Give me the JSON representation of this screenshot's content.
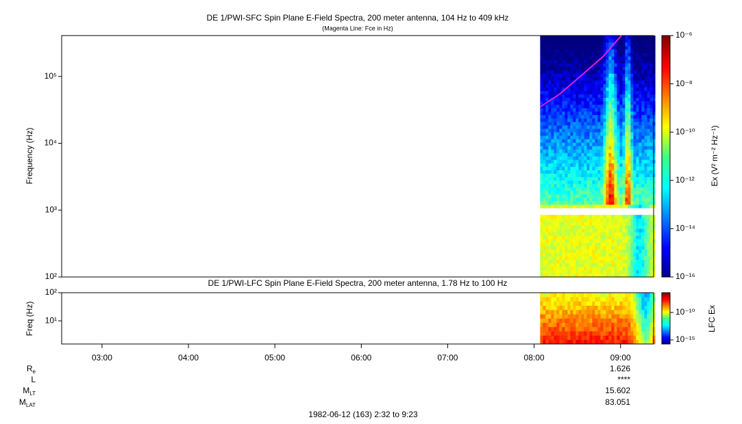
{
  "chart_data": [
    {
      "type": "spectrogram",
      "title": "DE 1/PWI-SFC  Spin Plane E-Field Spectra, 200 meter antenna, 104 Hz to 409 kHz",
      "subtitle": "(Magenta Line: Fce in Hz)",
      "ylabel": "Frequency (Hz)",
      "log_y": true,
      "xlim": [
        2.533,
        9.383
      ],
      "ylim": [
        100,
        409000
      ],
      "yticks": [
        {
          "value": 100,
          "label": "10²"
        },
        {
          "value": 1000,
          "label": "10³"
        },
        {
          "value": 10000,
          "label": "10⁴"
        },
        {
          "value": 100000,
          "label": "10⁵"
        }
      ],
      "series": [
        {
          "color": "#e020e0",
          "x": [
            8.07,
            8.3,
            8.57,
            8.8,
            9.01
          ],
          "values": [
            35000,
            55000,
            110000,
            200000,
            409000
          ]
        }
      ],
      "colorbar_label": "Ex (V² m⁻² Hz⁻¹)",
      "zlim": [
        1e-16,
        1e-06
      ],
      "zticks": [
        {
          "value": 1e-06,
          "label": "10⁻⁶"
        },
        {
          "value": 1e-08,
          "label": "10⁻⁸"
        },
        {
          "value": 1e-10,
          "label": "10⁻¹⁰"
        },
        {
          "value": 1e-12,
          "label": "10⁻¹²"
        },
        {
          "value": 1e-14,
          "label": "10⁻¹⁴"
        },
        {
          "value": 1e-16,
          "label": "10⁻¹⁶"
        }
      ]
    },
    {
      "type": "spectrogram",
      "title": "DE 1/PWI-LFC  Spin Plane E-Field Spectra, 200 meter antenna, 1.78 Hz to 100 Hz",
      "ylabel": "Freq (Hz)",
      "log_y": true,
      "xlim": [
        2.533,
        9.383
      ],
      "ylim": [
        1.5,
        100
      ],
      "yticks": [
        {
          "value": 10,
          "label": "10¹"
        },
        {
          "value": 100,
          "label": "10²"
        }
      ],
      "xticks": [
        {
          "value": 3,
          "label": "03:00"
        },
        {
          "value": 4,
          "label": "04:00"
        },
        {
          "value": 5,
          "label": "05:00"
        },
        {
          "value": 6,
          "label": "06:00"
        },
        {
          "value": 7,
          "label": "07:00"
        },
        {
          "value": 8,
          "label": "08:00"
        },
        {
          "value": 9,
          "label": "09:00"
        }
      ],
      "colorbar_label": "LFC Ex",
      "zlim": [
        1.8e-16,
        4e-07
      ],
      "zticks": [
        {
          "value": 1e-10,
          "label": "10⁻¹⁰"
        },
        {
          "value": 1e-15,
          "label": "10⁻¹⁵"
        }
      ]
    }
  ],
  "ephemeris": [
    {
      "name": "R",
      "sub": "e",
      "value": "1.626"
    },
    {
      "name": "L",
      "sub": "",
      "value": "****"
    },
    {
      "name": "M",
      "sub": "LT",
      "value": "15.602"
    },
    {
      "name": "M",
      "sub": "LAT",
      "value": "83.051"
    }
  ],
  "time_range": "1982-06-12 (163) 2:32 to 9:23"
}
